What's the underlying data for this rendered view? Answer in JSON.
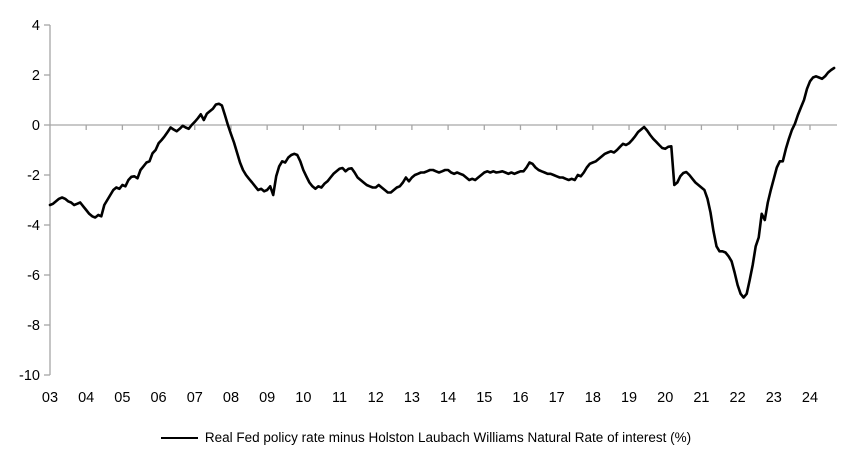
{
  "chart_data": {
    "type": "line",
    "title": "",
    "xlabel": "",
    "ylabel": "",
    "ylim": [
      -10,
      4
    ],
    "y_ticks": [
      4,
      2,
      0,
      -2,
      -4,
      -6,
      -8,
      -10
    ],
    "x_tick_labels": [
      "03",
      "04",
      "05",
      "06",
      "07",
      "08",
      "09",
      "10",
      "11",
      "12",
      "13",
      "14",
      "15",
      "16",
      "17",
      "18",
      "19",
      "20",
      "21",
      "22",
      "23",
      "24"
    ],
    "grid": "zero-line-only",
    "legend_position": "bottom-center",
    "series": [
      {
        "name": "Real Fed policy rate minus Holston Laubach Williams Natural Rate of interest (%)",
        "color": "#000000",
        "start": "2003-01",
        "frequency": "monthly",
        "values": [
          -3.2,
          -3.15,
          -3.05,
          -2.95,
          -2.9,
          -2.95,
          -3.05,
          -3.1,
          -3.2,
          -3.15,
          -3.1,
          -3.25,
          -3.4,
          -3.55,
          -3.65,
          -3.7,
          -3.6,
          -3.65,
          -3.2,
          -3.0,
          -2.8,
          -2.6,
          -2.5,
          -2.55,
          -2.4,
          -2.45,
          -2.2,
          -2.07,
          -2.05,
          -2.13,
          -1.8,
          -1.65,
          -1.5,
          -1.45,
          -1.13,
          -1.0,
          -0.73,
          -0.6,
          -0.45,
          -0.28,
          -0.1,
          -0.18,
          -0.25,
          -0.15,
          -0.03,
          -0.1,
          -0.15,
          0.0,
          0.13,
          0.27,
          0.43,
          0.2,
          0.45,
          0.55,
          0.65,
          0.82,
          0.85,
          0.78,
          0.4,
          0.0,
          -0.35,
          -0.7,
          -1.1,
          -1.5,
          -1.8,
          -2.0,
          -2.15,
          -2.3,
          -2.45,
          -2.6,
          -2.55,
          -2.65,
          -2.6,
          -2.45,
          -2.8,
          -2.05,
          -1.65,
          -1.45,
          -1.5,
          -1.3,
          -1.2,
          -1.15,
          -1.2,
          -1.45,
          -1.8,
          -2.05,
          -2.3,
          -2.45,
          -2.55,
          -2.45,
          -2.5,
          -2.35,
          -2.25,
          -2.1,
          -1.95,
          -1.85,
          -1.75,
          -1.72,
          -1.85,
          -1.75,
          -1.73,
          -1.9,
          -2.1,
          -2.2,
          -2.3,
          -2.4,
          -2.45,
          -2.5,
          -2.5,
          -2.4,
          -2.5,
          -2.6,
          -2.7,
          -2.7,
          -2.6,
          -2.5,
          -2.45,
          -2.3,
          -2.1,
          -2.25,
          -2.1,
          -2.0,
          -1.95,
          -1.9,
          -1.9,
          -1.85,
          -1.8,
          -1.8,
          -1.85,
          -1.9,
          -1.85,
          -1.8,
          -1.8,
          -1.9,
          -1.95,
          -1.9,
          -1.95,
          -2.0,
          -2.1,
          -2.2,
          -2.15,
          -2.2,
          -2.1,
          -2.0,
          -1.9,
          -1.85,
          -1.9,
          -1.85,
          -1.9,
          -1.88,
          -1.85,
          -1.9,
          -1.95,
          -1.9,
          -1.95,
          -1.9,
          -1.85,
          -1.85,
          -1.7,
          -1.5,
          -1.55,
          -1.7,
          -1.8,
          -1.85,
          -1.9,
          -1.95,
          -1.95,
          -2.0,
          -2.05,
          -2.1,
          -2.1,
          -2.15,
          -2.2,
          -2.15,
          -2.2,
          -2.0,
          -2.05,
          -1.9,
          -1.7,
          -1.55,
          -1.5,
          -1.45,
          -1.35,
          -1.25,
          -1.15,
          -1.1,
          -1.05,
          -1.1,
          -1.0,
          -0.87,
          -0.75,
          -0.8,
          -0.73,
          -0.6,
          -0.45,
          -0.28,
          -0.18,
          -0.08,
          -0.22,
          -0.4,
          -0.55,
          -0.67,
          -0.8,
          -0.92,
          -0.95,
          -0.87,
          -0.85,
          -2.4,
          -2.3,
          -2.05,
          -1.92,
          -1.88,
          -2.0,
          -2.15,
          -2.3,
          -2.4,
          -2.5,
          -2.6,
          -2.95,
          -3.5,
          -4.25,
          -4.85,
          -5.05,
          -5.05,
          -5.1,
          -5.25,
          -5.45,
          -5.9,
          -6.4,
          -6.75,
          -6.9,
          -6.75,
          -6.2,
          -5.6,
          -4.85,
          -4.5,
          -3.55,
          -3.8,
          -3.1,
          -2.6,
          -2.15,
          -1.7,
          -1.45,
          -1.45,
          -0.95,
          -0.55,
          -0.2,
          0.05,
          0.4,
          0.7,
          1.0,
          1.45,
          1.75,
          1.9,
          1.95,
          1.9,
          1.85,
          1.95,
          2.1,
          2.2,
          2.28
        ]
      }
    ]
  },
  "legend": {
    "label": "Real Fed policy rate minus Holston Laubach Williams Natural Rate of interest (%)"
  },
  "colors": {
    "axis": "#a6a6a6",
    "line": "#000000",
    "text": "#000000",
    "background": "#ffffff"
  }
}
